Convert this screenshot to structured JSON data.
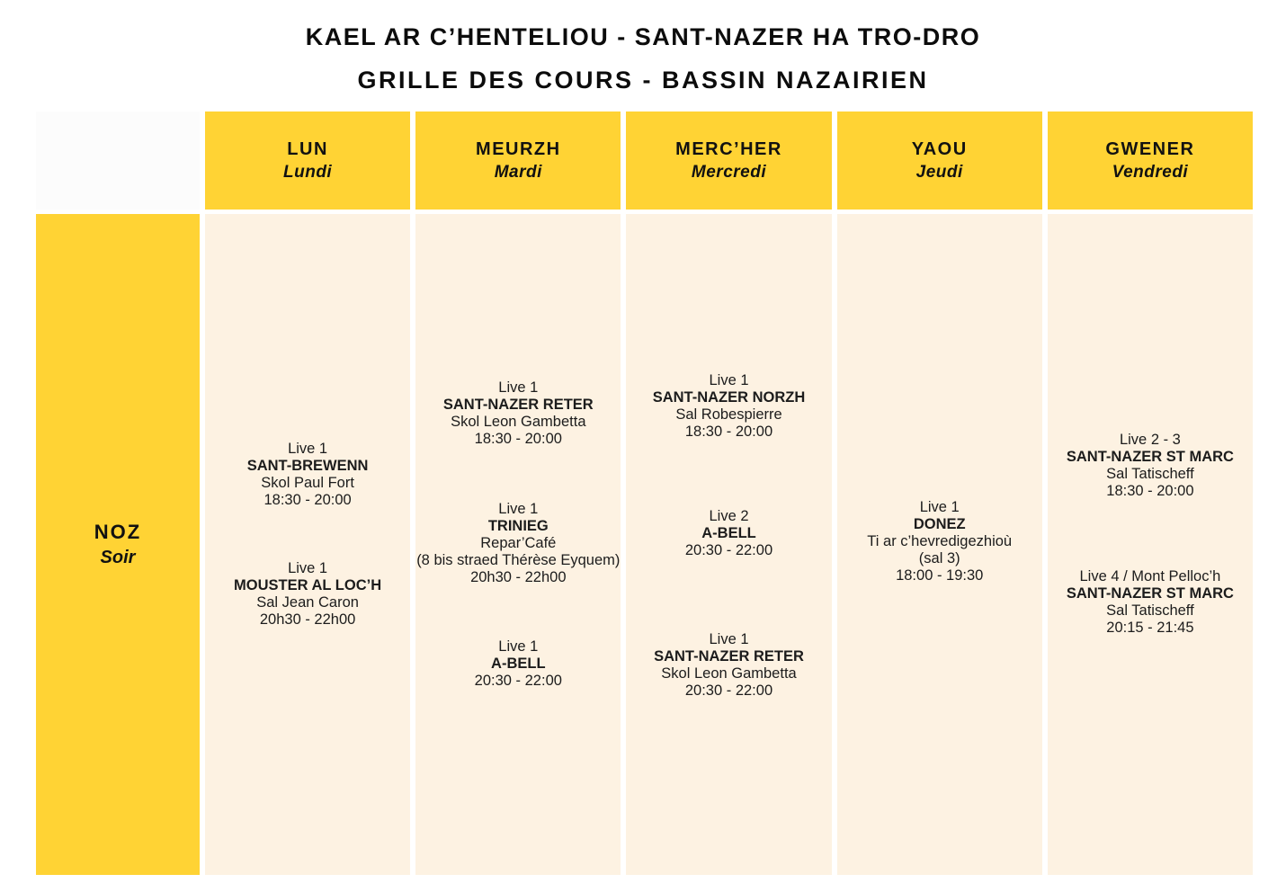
{
  "title": {
    "line1": "KAEL AR C’HENTELIOU - SANT-NAZER HA TRO-DRO",
    "line2": "GRILLE DES COURS - BASSIN NAZAIRIEN"
  },
  "colors": {
    "header_yellow": "#FFD334",
    "cell_cream": "#FDF2E2",
    "corner_cell": "#FCFCFC",
    "page_background": "#FFFFFF",
    "text": "#1A1A1A"
  },
  "row_label": {
    "breton": "NOZ",
    "french": "Soir"
  },
  "days": [
    {
      "breton": "LUN",
      "french": "Lundi",
      "events": [
        {
          "level": "Live 1",
          "name": "SANT-BREWENN",
          "location": [
            "Skol Paul Fort"
          ],
          "time": "18:30 - 20:00"
        },
        {
          "level": "Live 1",
          "name": "MOUSTER AL LOC’H",
          "location": [
            "Sal Jean Caron"
          ],
          "time": "20h30 - 22h00"
        }
      ]
    },
    {
      "breton": "MEURZH",
      "french": "Mardi",
      "events": [
        {
          "level": "Live 1",
          "name": "SANT-NAZER RETER",
          "location": [
            "Skol Leon Gambetta"
          ],
          "time": "18:30 - 20:00"
        },
        {
          "level": "Live 1",
          "name": "TRINIEG",
          "location": [
            "Repar’Café",
            "(8 bis straed Thérèse Eyquem)"
          ],
          "time": "20h30 - 22h00"
        },
        {
          "level": "Live 1",
          "name": "A-BELL",
          "location": [],
          "time": "20:30 - 22:00"
        }
      ]
    },
    {
      "breton": "MERC’HER",
      "french": "Mercredi",
      "events": [
        {
          "level": "Live 1",
          "name": "SANT-NAZER NORZH",
          "location": [
            "Sal Robespierre"
          ],
          "time": "18:30 - 20:00"
        },
        {
          "level": "Live 2",
          "name": "A-BELL",
          "location": [],
          "time": "20:30 - 22:00"
        },
        {
          "level": "Live 1",
          "name": "SANT-NAZER RETER",
          "location": [
            "Skol Leon Gambetta"
          ],
          "time": "20:30 - 22:00"
        }
      ]
    },
    {
      "breton": "YAOU",
      "french": "Jeudi",
      "events": [
        {
          "level": "Live 1",
          "name": "DONEZ",
          "location": [
            "Ti ar c’hevredigezhioù",
            "(sal 3)"
          ],
          "time": "18:00 - 19:30"
        }
      ]
    },
    {
      "breton": "GWENER",
      "french": "Vendredi",
      "events": [
        {
          "level": "Live 2 - 3",
          "name": "SANT-NAZER ST MARC",
          "location": [
            "Sal Tatischeff"
          ],
          "time": "18:30 - 20:00"
        },
        {
          "level": "Live 4 / Mont Pelloc’h",
          "name": "SANT-NAZER ST MARC",
          "location": [
            "Sal Tatischeff"
          ],
          "time": "20:15 - 21:45"
        }
      ]
    }
  ]
}
